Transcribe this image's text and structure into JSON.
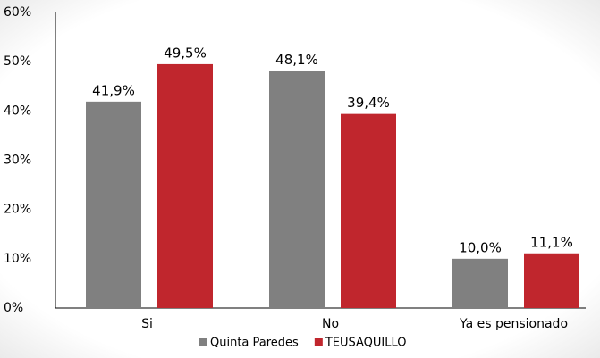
{
  "chart_data": {
    "type": "bar",
    "categories": [
      "Si",
      "No",
      "Ya es pensionado"
    ],
    "series": [
      {
        "name": "Quinta Paredes",
        "color": "#808080",
        "values": [
          41.9,
          48.1,
          10.0
        ],
        "value_labels": [
          "41,9%",
          "48,1%",
          "10,0%"
        ]
      },
      {
        "name": "TEUSAQUILLO",
        "color": "#c0262d",
        "values": [
          49.5,
          39.4,
          11.1
        ],
        "value_labels": [
          "49,5%",
          "39,4%",
          "11,1%"
        ]
      }
    ],
    "ylim": [
      0,
      60
    ],
    "yticks": [
      {
        "value": 0,
        "label": "0%"
      },
      {
        "value": 10,
        "label": "10%"
      },
      {
        "value": 20,
        "label": "20%"
      },
      {
        "value": 30,
        "label": "30%"
      },
      {
        "value": 40,
        "label": "40%"
      },
      {
        "value": 50,
        "label": "50%"
      },
      {
        "value": 60,
        "label": "60%"
      }
    ],
    "grid": false,
    "legend": "bottom"
  }
}
